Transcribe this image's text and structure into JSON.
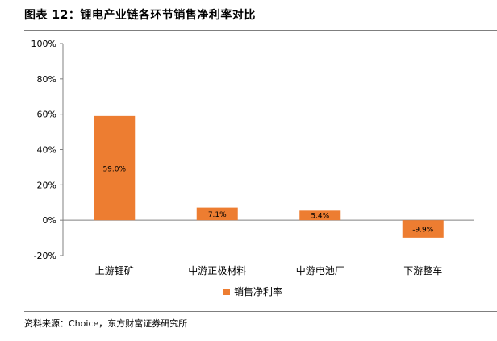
{
  "figure": {
    "title": "图表 12：锂电产业链各环节销售净利率对比",
    "source": "资料来源：Choice，东方财富证券研究所"
  },
  "chart_data": {
    "type": "bar",
    "categories": [
      "上游锂矿",
      "中游正极材料",
      "中游电池厂",
      "下游整车"
    ],
    "series": [
      {
        "name": "销售净利率",
        "values": [
          59.0,
          7.1,
          5.4,
          -9.9
        ],
        "labels": [
          "59.0%",
          "7.1%",
          "5.4%",
          "-9.9%"
        ]
      }
    ],
    "yticks": [
      -20,
      0,
      20,
      40,
      60,
      80,
      100
    ],
    "ytick_labels": [
      "-20%",
      "0%",
      "20%",
      "40%",
      "60%",
      "80%",
      "100%"
    ],
    "ylim": [
      -20,
      100
    ],
    "grid": false,
    "legend": "bottom",
    "color": "#ED7D31",
    "xlabel": "",
    "ylabel": ""
  }
}
